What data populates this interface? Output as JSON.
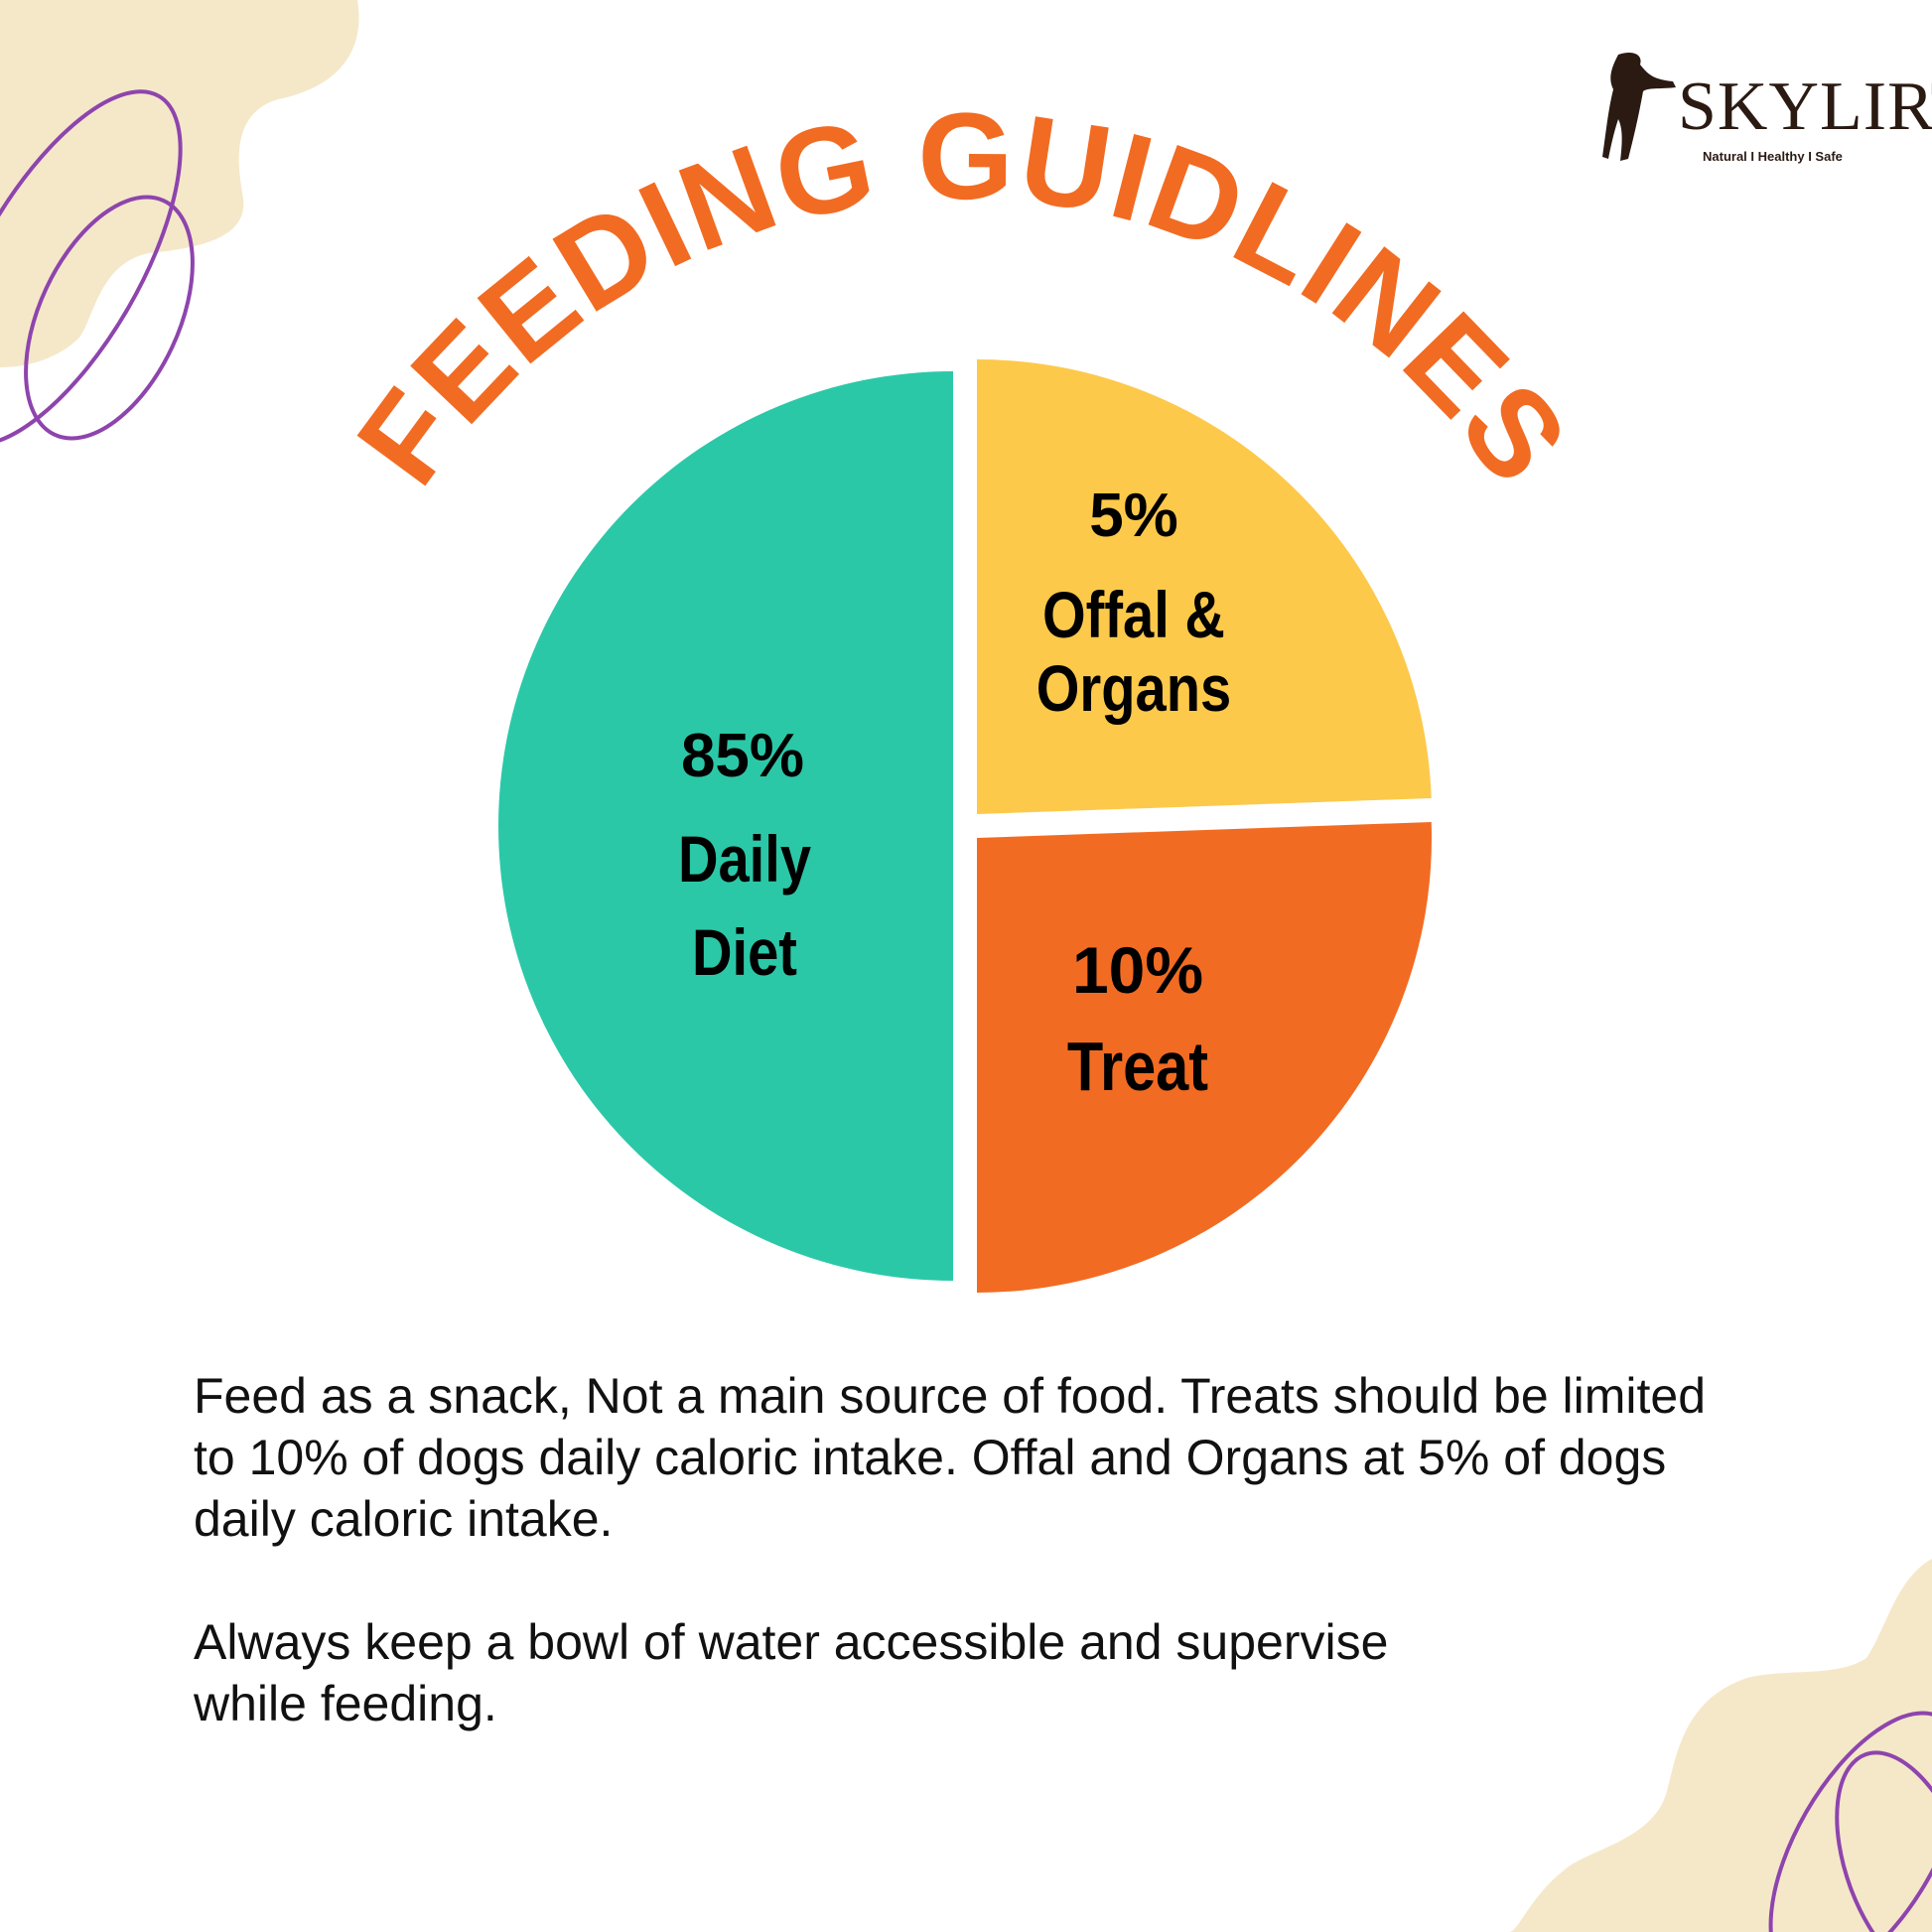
{
  "title": "FEEDING GUIDLINES",
  "brand": {
    "name": "SKYLIRT",
    "tagline": "Natural I Healthy I Safe"
  },
  "colors": {
    "title": "#F26B22",
    "daily_diet": "#2BC8A8",
    "offal": "#FDC94A",
    "treat": "#F26B22",
    "blob": "#F5E8C9",
    "loops": "#8E44AD"
  },
  "chart_data": {
    "type": "pie",
    "title": "FEEDING GUIDLINES",
    "slices": [
      {
        "label": "Daily Diet",
        "percent_label": "85%",
        "value": 85,
        "color": "#2BC8A8"
      },
      {
        "label": "Offal & Organs",
        "percent_label": "5%",
        "value": 5,
        "color": "#FDC94A"
      },
      {
        "label": "Treat",
        "percent_label": "10%",
        "value": 10,
        "color": "#F26B22"
      }
    ]
  },
  "body": {
    "paragraph1": "Feed as a snack, Not a main source of food. Treats should be limited to 10% of dogs daily caloric intake. Offal and Organs at 5% of dogs daily caloric intake.",
    "paragraph2": "Always keep a bowl of water accessible and supervise while feeding."
  }
}
